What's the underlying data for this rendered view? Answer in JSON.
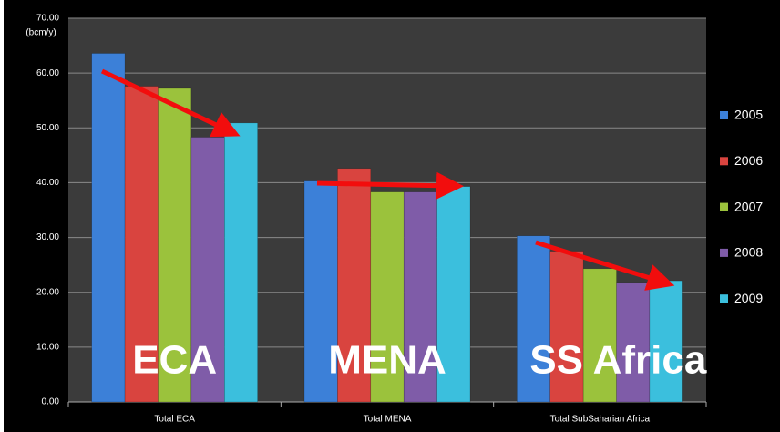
{
  "chart_data": {
    "type": "bar",
    "y_label": "(bcm/y)",
    "categories": [
      "Total ECA",
      "Total MENA",
      "Total SubSaharian Africa"
    ],
    "series": [
      {
        "name": "2005",
        "color": "#3c80d8",
        "values": [
          63.6,
          40.3,
          30.3
        ]
      },
      {
        "name": "2006",
        "color": "#d9443f",
        "values": [
          57.6,
          42.6,
          27.5
        ]
      },
      {
        "name": "2007",
        "color": "#9bc23c",
        "values": [
          57.2,
          38.3,
          24.3
        ]
      },
      {
        "name": "2008",
        "color": "#7f5ca8",
        "values": [
          48.3,
          38.3,
          21.8
        ]
      },
      {
        "name": "2009",
        "color": "#3bbfdd",
        "values": [
          50.9,
          39.3,
          22.1
        ]
      }
    ],
    "annotations": [
      "ECA",
      "MENA",
      "SS Africa"
    ],
    "ylim": [
      0,
      70
    ],
    "yticks": [
      {
        "value": 0,
        "label": "0.00"
      },
      {
        "value": 10,
        "label": "10.00"
      },
      {
        "value": 20,
        "label": "20.00"
      },
      {
        "value": 30,
        "label": "30.00"
      },
      {
        "value": 40,
        "label": "40.00"
      },
      {
        "value": 50,
        "label": "50.00"
      },
      {
        "value": 60,
        "label": "60.00"
      },
      {
        "value": 70,
        "label": "70.00"
      }
    ],
    "grid": true,
    "legend": "right"
  }
}
